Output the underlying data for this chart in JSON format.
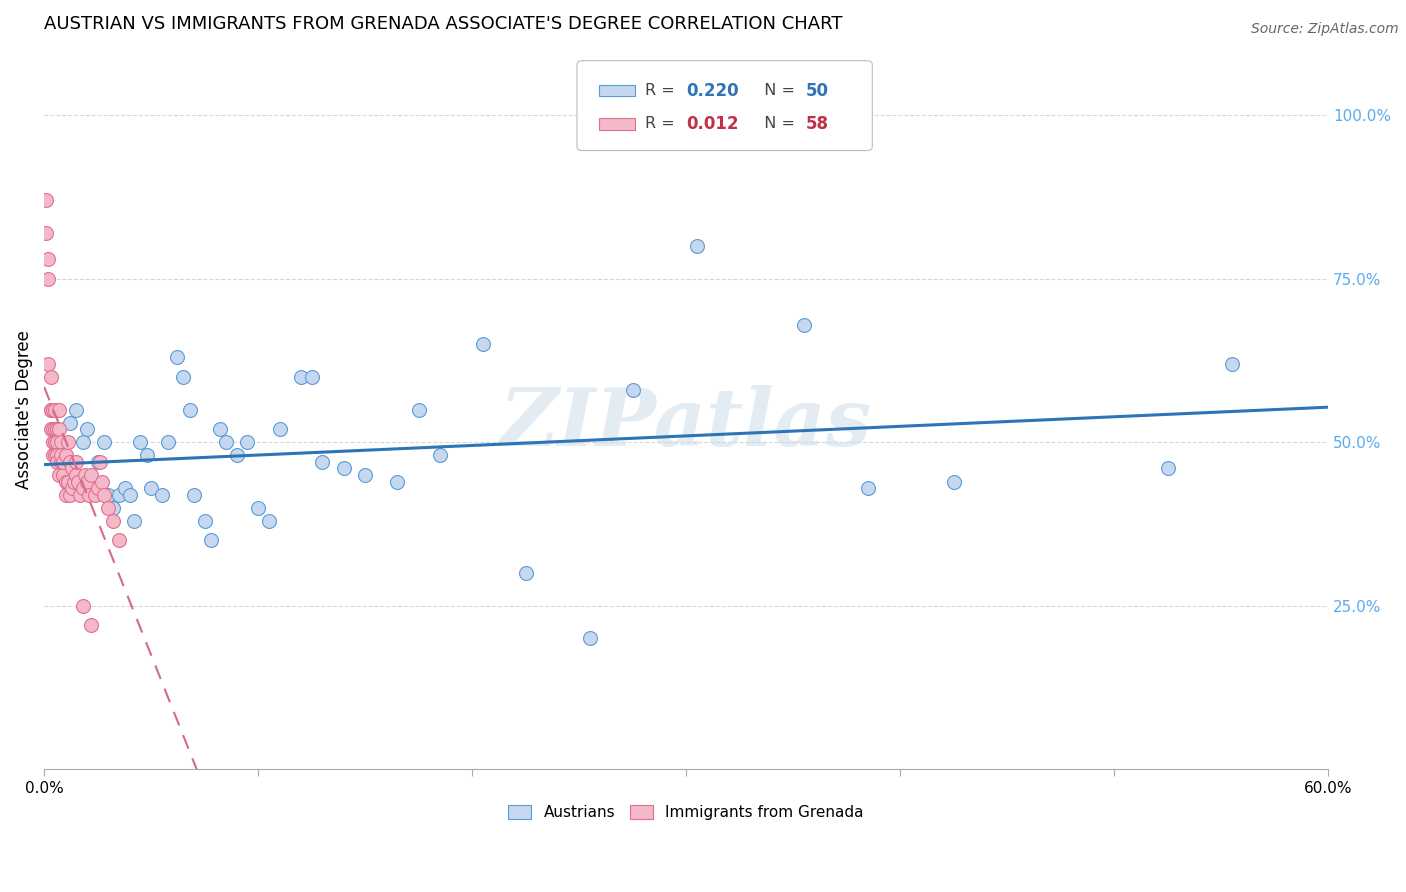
{
  "title": "AUSTRIAN VS IMMIGRANTS FROM GRENADA ASSOCIATE'S DEGREE CORRELATION CHART",
  "source": "Source: ZipAtlas.com",
  "ylabel": "Associate's Degree",
  "right_yticks": [
    "25.0%",
    "50.0%",
    "75.0%",
    "100.0%"
  ],
  "right_ytick_vals": [
    0.25,
    0.5,
    0.75,
    1.0
  ],
  "legend_blue_r": "0.220",
  "legend_blue_n": "50",
  "legend_pink_r": "0.012",
  "legend_pink_n": "58",
  "watermark": "ZIPatlas",
  "austrians_x": [
    0.008,
    0.012,
    0.015,
    0.018,
    0.02,
    0.022,
    0.025,
    0.028,
    0.03,
    0.032,
    0.035,
    0.038,
    0.04,
    0.042,
    0.045,
    0.048,
    0.05,
    0.055,
    0.058,
    0.062,
    0.065,
    0.068,
    0.07,
    0.075,
    0.078,
    0.082,
    0.085,
    0.09,
    0.095,
    0.1,
    0.105,
    0.11,
    0.12,
    0.125,
    0.13,
    0.14,
    0.15,
    0.165,
    0.175,
    0.185,
    0.205,
    0.225,
    0.255,
    0.275,
    0.305,
    0.355,
    0.385,
    0.425,
    0.525,
    0.555
  ],
  "austrians_y": [
    0.48,
    0.53,
    0.55,
    0.5,
    0.52,
    0.44,
    0.47,
    0.5,
    0.42,
    0.4,
    0.42,
    0.43,
    0.42,
    0.38,
    0.5,
    0.48,
    0.43,
    0.42,
    0.5,
    0.63,
    0.6,
    0.55,
    0.42,
    0.38,
    0.35,
    0.52,
    0.5,
    0.48,
    0.5,
    0.4,
    0.38,
    0.52,
    0.6,
    0.6,
    0.47,
    0.46,
    0.45,
    0.44,
    0.55,
    0.48,
    0.65,
    0.3,
    0.2,
    0.58,
    0.8,
    0.68,
    0.43,
    0.44,
    0.46,
    0.62
  ],
  "grenada_x": [
    0.001,
    0.001,
    0.002,
    0.002,
    0.002,
    0.003,
    0.003,
    0.003,
    0.003,
    0.004,
    0.004,
    0.004,
    0.004,
    0.005,
    0.005,
    0.005,
    0.005,
    0.006,
    0.006,
    0.006,
    0.006,
    0.007,
    0.007,
    0.007,
    0.008,
    0.008,
    0.008,
    0.009,
    0.009,
    0.01,
    0.01,
    0.01,
    0.011,
    0.011,
    0.012,
    0.012,
    0.013,
    0.013,
    0.014,
    0.015,
    0.015,
    0.016,
    0.017,
    0.018,
    0.019,
    0.02,
    0.021,
    0.022,
    0.024,
    0.025,
    0.026,
    0.027,
    0.028,
    0.03,
    0.032,
    0.035,
    0.018,
    0.022
  ],
  "grenada_y": [
    0.87,
    0.82,
    0.78,
    0.75,
    0.62,
    0.55,
    0.52,
    0.6,
    0.55,
    0.52,
    0.5,
    0.55,
    0.48,
    0.52,
    0.5,
    0.55,
    0.48,
    0.52,
    0.5,
    0.48,
    0.47,
    0.45,
    0.55,
    0.52,
    0.5,
    0.47,
    0.48,
    0.45,
    0.47,
    0.48,
    0.44,
    0.42,
    0.5,
    0.44,
    0.47,
    0.42,
    0.43,
    0.46,
    0.44,
    0.47,
    0.45,
    0.44,
    0.42,
    0.43,
    0.45,
    0.44,
    0.42,
    0.45,
    0.42,
    0.43,
    0.47,
    0.44,
    0.42,
    0.4,
    0.38,
    0.35,
    0.25,
    0.22
  ],
  "blue_scatter_face": "#c5d8ef",
  "blue_scatter_edge": "#5b9bd5",
  "pink_scatter_face": "#f4b8c8",
  "pink_scatter_edge": "#e07090",
  "blue_line_color": "#2e75b6",
  "pink_line_color": "#d46a8a",
  "blue_text_color": "#2e75b6",
  "pink_text_color": "#c0304a",
  "right_axis_color": "#5aabf0",
  "grid_color": "#d8d8d8",
  "xlim": [
    0.0,
    0.6
  ],
  "ylim": [
    0.0,
    1.1
  ]
}
